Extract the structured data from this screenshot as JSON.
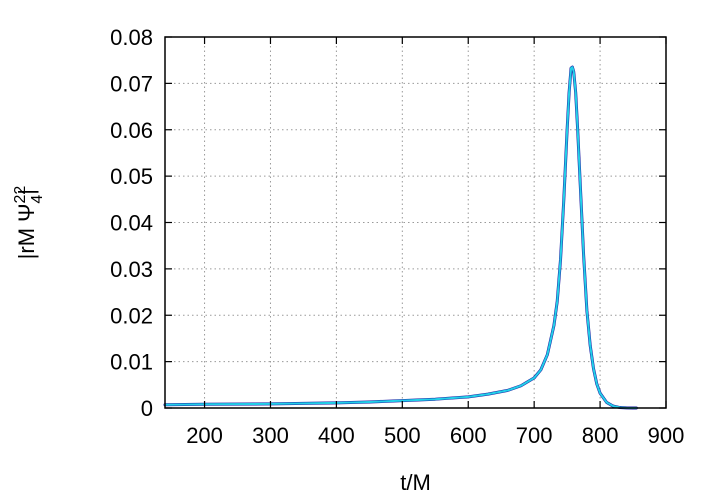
{
  "chart_data": {
    "type": "line",
    "xlabel": "t/M",
    "ylabel_parts": {
      "open": "|rM Ψ",
      "superscript": "22",
      "subscript": "4",
      "close": "|"
    },
    "xlim": [
      140,
      900
    ],
    "ylim": [
      0,
      0.08
    ],
    "xticks": [
      200,
      300,
      400,
      500,
      600,
      700,
      800,
      900
    ],
    "yticks": [
      0,
      0.01,
      0.02,
      0.03,
      0.04,
      0.05,
      0.06,
      0.07,
      0.08
    ],
    "grid": true,
    "series": [
      {
        "color": "#1a1aa0",
        "x": [
          140,
          200,
          300,
          400,
          450,
          500,
          550,
          600,
          630,
          660,
          680,
          700,
          710,
          720,
          730,
          735,
          740,
          745,
          750,
          753,
          756,
          758,
          760,
          763,
          766,
          770,
          775,
          780,
          785,
          790,
          795,
          800,
          810,
          820,
          830,
          840,
          850,
          855
        ],
        "y": [
          0.0007,
          0.0008,
          0.0009,
          0.0011,
          0.0013,
          0.0016,
          0.0019,
          0.0024,
          0.003,
          0.0038,
          0.0048,
          0.0065,
          0.0082,
          0.0115,
          0.0178,
          0.023,
          0.032,
          0.045,
          0.06,
          0.068,
          0.0733,
          0.0735,
          0.0725,
          0.068,
          0.06,
          0.048,
          0.033,
          0.021,
          0.0135,
          0.0085,
          0.0052,
          0.0032,
          0.0012,
          0.0004,
          0.0001,
          3e-05,
          1e-05,
          0.0
        ]
      },
      {
        "color": "#22d0e8",
        "x": [
          140,
          200,
          300,
          400,
          450,
          500,
          550,
          600,
          630,
          660,
          680,
          700,
          710,
          720,
          730,
          735,
          740,
          745,
          750,
          753,
          756,
          758,
          760,
          763,
          766,
          770,
          775,
          780,
          785,
          790,
          795,
          800,
          810,
          820,
          830,
          840,
          850,
          855
        ],
        "y": [
          0.0007,
          0.0008,
          0.0009,
          0.0011,
          0.0013,
          0.0016,
          0.0019,
          0.0024,
          0.003,
          0.0038,
          0.0048,
          0.0065,
          0.0082,
          0.0115,
          0.0178,
          0.023,
          0.032,
          0.045,
          0.06,
          0.068,
          0.0733,
          0.0735,
          0.0725,
          0.068,
          0.06,
          0.048,
          0.033,
          0.021,
          0.0135,
          0.0085,
          0.0052,
          0.0032,
          0.0012,
          0.0004,
          0.0001,
          3e-05,
          1e-05,
          0.0
        ]
      }
    ]
  }
}
